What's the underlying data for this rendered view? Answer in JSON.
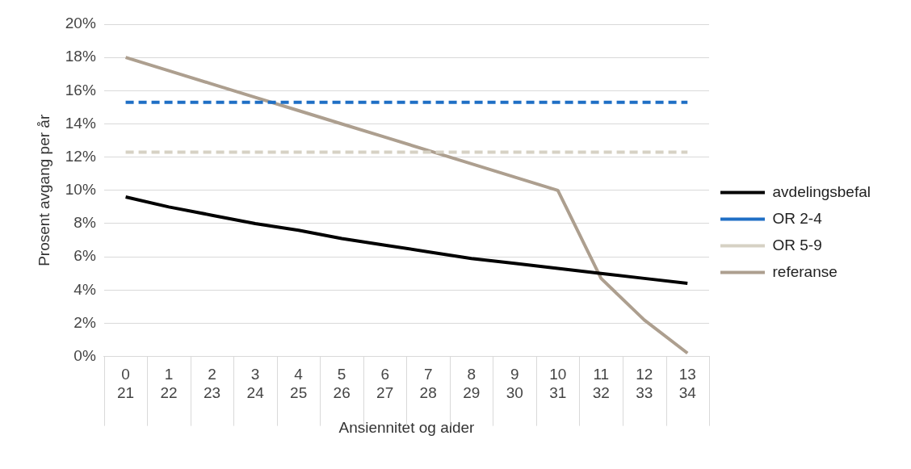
{
  "chart_data": {
    "type": "line",
    "xlabel": "Ansiennitet og alder",
    "ylabel": "Prosent avgang per år",
    "categories": [
      "0\n21",
      "1\n22",
      "2\n23",
      "3\n24",
      "4\n25",
      "5\n26",
      "6\n27",
      "7\n28",
      "8\n29",
      "9\n30",
      "10\n31",
      "11\n32",
      "12\n33",
      "13\n34"
    ],
    "series": [
      {
        "name": "avdelingsbefal",
        "color": "#000000",
        "line_style": "solid",
        "values": [
          9.6,
          9.0,
          8.5,
          8.0,
          7.6,
          7.1,
          6.7,
          6.3,
          5.9,
          5.6,
          5.3,
          5.0,
          4.7,
          4.4
        ]
      },
      {
        "name": "OR 2-4",
        "color": "#1f6fc5",
        "line_style": "dashed",
        "values": [
          15.3,
          15.3,
          15.3,
          15.3,
          15.3,
          15.3,
          15.3,
          15.3,
          15.3,
          15.3,
          15.3,
          15.3,
          15.3,
          15.3
        ]
      },
      {
        "name": "OR 5-9",
        "color": "#d6d1c4",
        "line_style": "dashed",
        "values": [
          12.3,
          12.3,
          12.3,
          12.3,
          12.3,
          12.3,
          12.3,
          12.3,
          12.3,
          12.3,
          12.3,
          12.3,
          12.3,
          12.3
        ]
      },
      {
        "name": "referanse",
        "color": "#ad9f8f",
        "line_style": "solid",
        "values": [
          18.0,
          17.2,
          16.4,
          15.6,
          14.8,
          14.0,
          13.2,
          12.4,
          11.6,
          10.8,
          10.0,
          4.7,
          2.2,
          0.2
        ]
      }
    ],
    "ylim": [
      0,
      20
    ],
    "yticks": [
      {
        "value": 0,
        "label": "0%"
      },
      {
        "value": 2,
        "label": "2%"
      },
      {
        "value": 4,
        "label": "4%"
      },
      {
        "value": 6,
        "label": "6%"
      },
      {
        "value": 8,
        "label": "8%"
      },
      {
        "value": 10,
        "label": "10%"
      },
      {
        "value": 12,
        "label": "12%"
      },
      {
        "value": 14,
        "label": "14%"
      },
      {
        "value": 16,
        "label": "16%"
      },
      {
        "value": 18,
        "label": "18%"
      },
      {
        "value": 20,
        "label": "20%"
      }
    ],
    "grid": "y",
    "legend": "right",
    "marker": "none"
  }
}
